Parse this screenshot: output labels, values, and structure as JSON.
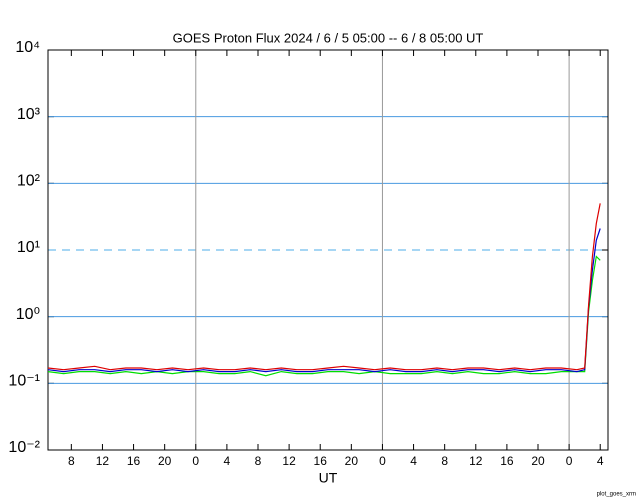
{
  "chart_data": {
    "type": "line",
    "title": "GOES Proton Flux   2024 / 6 / 5   05:00 -- 6 / 8  05:00   UT",
    "xlabel": "UT",
    "footer": "plot_goes_xrm",
    "log_y": true,
    "grid": true,
    "threshold": 10,
    "day_lines": [
      19,
      43,
      67
    ],
    "xlim": [
      0,
      72
    ],
    "xticks": [
      {
        "value": 3,
        "label": "8"
      },
      {
        "value": 7,
        "label": "12"
      },
      {
        "value": 11,
        "label": "16"
      },
      {
        "value": 15,
        "label": "20"
      },
      {
        "value": 19,
        "label": "0"
      },
      {
        "value": 23,
        "label": "4"
      },
      {
        "value": 27,
        "label": "8"
      },
      {
        "value": 31,
        "label": "12"
      },
      {
        "value": 35,
        "label": "16"
      },
      {
        "value": 39,
        "label": "20"
      },
      {
        "value": 43,
        "label": "0"
      },
      {
        "value": 47,
        "label": "4"
      },
      {
        "value": 51,
        "label": "8"
      },
      {
        "value": 55,
        "label": "12"
      },
      {
        "value": 59,
        "label": "16"
      },
      {
        "value": 63,
        "label": "20"
      },
      {
        "value": 67,
        "label": "0"
      },
      {
        "value": 71,
        "label": "4"
      }
    ],
    "ylim": [
      0.01,
      10000
    ],
    "yticks": [
      {
        "value": 0.01,
        "label": "10⁻²"
      },
      {
        "value": 0.1,
        "label": "10⁻¹"
      },
      {
        "value": 1,
        "label": "10⁰"
      },
      {
        "value": 10,
        "label": "10¹"
      },
      {
        "value": 100,
        "label": "10²"
      },
      {
        "value": 1000,
        "label": "10³"
      },
      {
        "value": 10000,
        "label": "10⁴"
      }
    ],
    "x": [
      0,
      2,
      4,
      6,
      8,
      10,
      12,
      14,
      16,
      18,
      20,
      22,
      24,
      26,
      28,
      30,
      32,
      34,
      36,
      38,
      40,
      42,
      44,
      46,
      48,
      50,
      52,
      54,
      56,
      58,
      60,
      62,
      64,
      66,
      68,
      69,
      69.5,
      70,
      70.5,
      71
    ],
    "series": [
      {
        "color": "#dd0000",
        "values": [
          0.17,
          0.16,
          0.17,
          0.18,
          0.16,
          0.17,
          0.17,
          0.16,
          0.17,
          0.16,
          0.17,
          0.16,
          0.16,
          0.17,
          0.16,
          0.17,
          0.16,
          0.16,
          0.17,
          0.18,
          0.17,
          0.16,
          0.17,
          0.16,
          0.16,
          0.17,
          0.16,
          0.17,
          0.17,
          0.16,
          0.17,
          0.16,
          0.17,
          0.17,
          0.16,
          0.17,
          1.5,
          8,
          25,
          50
        ]
      },
      {
        "color": "#0000cc",
        "values": [
          0.16,
          0.15,
          0.16,
          0.16,
          0.15,
          0.16,
          0.16,
          0.15,
          0.16,
          0.15,
          0.16,
          0.15,
          0.15,
          0.16,
          0.15,
          0.16,
          0.15,
          0.15,
          0.16,
          0.16,
          0.16,
          0.15,
          0.16,
          0.15,
          0.15,
          0.16,
          0.15,
          0.16,
          0.16,
          0.15,
          0.16,
          0.15,
          0.16,
          0.16,
          0.15,
          0.16,
          1.4,
          5,
          14,
          21
        ]
      },
      {
        "color": "#00dd00",
        "values": [
          0.15,
          0.14,
          0.15,
          0.15,
          0.14,
          0.15,
          0.14,
          0.15,
          0.14,
          0.15,
          0.15,
          0.14,
          0.14,
          0.15,
          0.13,
          0.15,
          0.14,
          0.14,
          0.15,
          0.15,
          0.14,
          0.15,
          0.14,
          0.14,
          0.14,
          0.15,
          0.14,
          0.15,
          0.14,
          0.14,
          0.15,
          0.14,
          0.14,
          0.15,
          0.15,
          0.15,
          1.2,
          3.5,
          8,
          7
        ]
      }
    ]
  }
}
